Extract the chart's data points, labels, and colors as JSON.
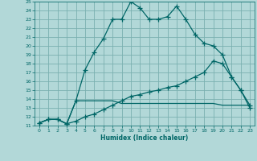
{
  "xlabel": "Humidex (Indice chaleur)",
  "bg_color": "#b2d8d8",
  "grid_color": "#7ab0b0",
  "line_color": "#006666",
  "xlim": [
    -0.5,
    23.5
  ],
  "ylim": [
    11,
    25
  ],
  "xticks": [
    0,
    1,
    2,
    3,
    4,
    5,
    6,
    7,
    8,
    9,
    10,
    11,
    12,
    13,
    14,
    15,
    16,
    17,
    18,
    19,
    20,
    21,
    22,
    23
  ],
  "yticks": [
    11,
    12,
    13,
    14,
    15,
    16,
    17,
    18,
    19,
    20,
    21,
    22,
    23,
    24,
    25
  ],
  "line1_x": [
    0,
    1,
    2,
    3,
    4,
    5,
    6,
    7,
    8,
    9,
    10,
    11,
    12,
    13,
    14,
    15,
    16,
    17,
    18,
    19,
    20,
    21,
    22,
    23
  ],
  "line1_y": [
    11.3,
    11.7,
    11.7,
    11.2,
    13.8,
    17.3,
    19.3,
    20.8,
    23.0,
    23.0,
    25.0,
    24.3,
    23.0,
    23.0,
    23.3,
    24.5,
    23.0,
    21.3,
    20.3,
    20.0,
    19.0,
    16.5,
    15.0,
    13.0
  ],
  "line2_x": [
    0,
    1,
    2,
    3,
    4,
    5,
    6,
    7,
    8,
    9,
    10,
    11,
    12,
    13,
    14,
    15,
    16,
    17,
    18,
    19,
    20,
    21,
    22,
    23
  ],
  "line2_y": [
    11.3,
    11.7,
    11.7,
    11.2,
    13.8,
    13.8,
    13.8,
    13.8,
    13.8,
    13.5,
    13.5,
    13.5,
    13.5,
    13.5,
    13.5,
    13.5,
    13.5,
    13.5,
    13.5,
    13.5,
    13.3,
    13.3,
    13.3,
    13.3
  ],
  "line3_x": [
    0,
    1,
    2,
    3,
    4,
    5,
    6,
    7,
    8,
    9,
    10,
    11,
    12,
    13,
    14,
    15,
    16,
    17,
    18,
    19,
    20,
    21,
    22,
    23
  ],
  "line3_y": [
    11.3,
    11.7,
    11.7,
    11.2,
    11.5,
    12.0,
    12.3,
    12.8,
    13.3,
    13.8,
    14.3,
    14.5,
    14.8,
    15.0,
    15.3,
    15.5,
    16.0,
    16.5,
    17.0,
    18.3,
    18.0,
    16.5,
    15.0,
    13.3
  ]
}
